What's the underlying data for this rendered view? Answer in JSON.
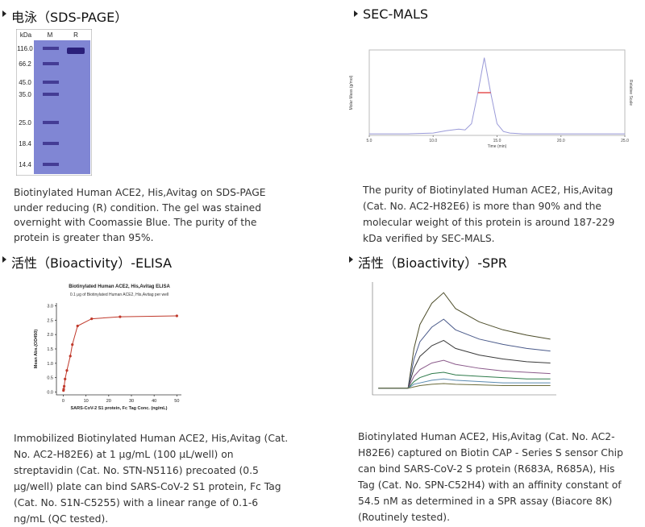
{
  "panels": [
    {
      "title": "电泳（SDS-PAGE）",
      "figure": {
        "type": "gel",
        "header": [
          "kDa",
          "M",
          "R"
        ],
        "markers": [
          "116.0",
          "66.2",
          "45.0",
          "35.0",
          "25.0",
          "18.4",
          "14.4"
        ]
      },
      "caption": "Biotinylated Human ACE2, His,Avitag on SDS-PAGE under reducing (R) condition. The gel was stained overnight with Coomassie Blue. The purity of the protein is greater than 95%."
    },
    {
      "title": "SEC-MALS",
      "figure": {
        "type": "line",
        "xlabel": "Time (min)",
        "ylabel": "Molar Mass (g/mol)",
        "y2label": "Relative Scale",
        "x": [
          5,
          8,
          10,
          11,
          12,
          12.5,
          13,
          13.5,
          14,
          14.5,
          15,
          15.5,
          16,
          17,
          20,
          25
        ],
        "series": [
          {
            "color": "#9a9ad8",
            "values": [
              0.02,
              0.02,
              0.03,
              0.06,
              0.08,
              0.07,
              0.15,
              0.55,
              1.0,
              0.55,
              0.15,
              0.05,
              0.03,
              0.02,
              0.02,
              0.02
            ]
          },
          {
            "color": "#e03030",
            "values": [
              null,
              null,
              null,
              null,
              null,
              null,
              null,
              0.55,
              0.55,
              0.55,
              null,
              null,
              null,
              null,
              null,
              null
            ]
          }
        ],
        "xlim": [
          5,
          25
        ],
        "ylim": [
          0,
          1.1
        ],
        "xticks": [
          {
            "value": 5,
            "label": "5.0"
          },
          {
            "value": 10,
            "label": "10.0"
          },
          {
            "value": 15,
            "label": "15.0"
          },
          {
            "value": 20,
            "label": "20.0"
          },
          {
            "value": 25,
            "label": "25.0"
          }
        ]
      },
      "caption": "The purity of Biotinylated Human ACE2, His,Avitag (Cat. No. AC2-H82E6) is more than 90% and the molecular weight of this protein is around 187-229 kDa verified by SEC-MALS."
    },
    {
      "title": "活性（Bioactivity）-ELISA",
      "figure": {
        "type": "scatter",
        "title": "Biotinylated Human ACE2, His,Avitag ELISA",
        "subtitle": "0.1 μg of Biotinylated Human ACE2, His,Avitag per well",
        "xlabel": "SARS-CoV-2 S1 protein, Fc Tag Conc. (ng/mL)",
        "ylabel": "Mean Abs.(OD450)",
        "x": [
          0.1,
          0.2,
          0.4,
          0.8,
          1.6,
          3.1,
          4,
          6.3,
          12.5,
          25,
          50
        ],
        "values": [
          0.05,
          0.1,
          0.2,
          0.45,
          0.75,
          1.25,
          1.65,
          2.3,
          2.55,
          2.62,
          2.65
        ],
        "color": "#c0392b",
        "xlim": [
          -3,
          52
        ],
        "ylim": [
          -0.1,
          3.1
        ],
        "xticks": [
          0,
          10,
          20,
          30,
          40,
          50
        ],
        "yticks": [
          {
            "value": 0,
            "label": "0.0"
          },
          0.5,
          {
            "value": 1,
            "label": "1.0"
          },
          1.5,
          {
            "value": 2,
            "label": "2.0"
          },
          2.5,
          {
            "value": 3,
            "label": "3.0"
          }
        ]
      },
      "caption": "Immobilized Biotinylated Human ACE2, His,Avitag (Cat. No. AC2-H82E6) at 1 μg/mL (100 μL/well) on streptavidin (Cat. No. STN-N5116) precoated (0.5 μg/well) plate can bind SARS-CoV-2 S1 protein, Fc Tag (Cat. No. S1N-C5255) with a linear range of 0.1-6 ng/mL (QC tested)."
    },
    {
      "title": "活性（Bioactivity）-SPR",
      "figure": {
        "type": "line",
        "x": [
          -50,
          0,
          10,
          20,
          40,
          60,
          80,
          120,
          160,
          200,
          240
        ],
        "series": [
          {
            "color": "#4d4d2a",
            "values": [
              0,
              0,
              30,
              48,
              64,
              72,
              60,
              50,
              44,
              40,
              37
            ]
          },
          {
            "color": "#4a5a8a",
            "values": [
              0,
              0,
              22,
              35,
              46,
              52,
              44,
              37,
              33,
              30,
              28
            ]
          },
          {
            "color": "#3a3a3a",
            "values": [
              0,
              0,
              15,
              24,
              32,
              36,
              30,
              25,
              22,
              20,
              19
            ]
          },
          {
            "color": "#8a5a8a",
            "values": [
              0,
              0,
              9,
              14,
              19,
              21,
              18,
              15,
              13,
              12,
              11
            ]
          },
          {
            "color": "#2e7a4a",
            "values": [
              0,
              0,
              5,
              8,
              11,
              12,
              10,
              9,
              8,
              7,
              7
            ]
          },
          {
            "color": "#5a8ab0",
            "values": [
              0,
              0,
              3,
              4,
              6,
              7,
              6,
              5,
              4,
              4,
              4
            ]
          },
          {
            "color": "#6a6a3a",
            "values": [
              0,
              0,
              1,
              2,
              3,
              3.5,
              3,
              2.5,
              2,
              2,
              2
            ]
          }
        ],
        "xlim": [
          -60,
          250
        ],
        "ylim": [
          -5,
          80
        ]
      },
      "caption": "Biotinylated Human ACE2, His,Avitag (Cat. No. AC2-H82E6) captured on Biotin CAP - Series S sensor Chip can bind SARS-CoV-2 S protein (R683A, R685A), His Tag (Cat. No. SPN-C52H4) with an affinity constant of 54.5 nM as determined in a SPR assay (Biacore 8K) (Routinely tested)."
    }
  ]
}
